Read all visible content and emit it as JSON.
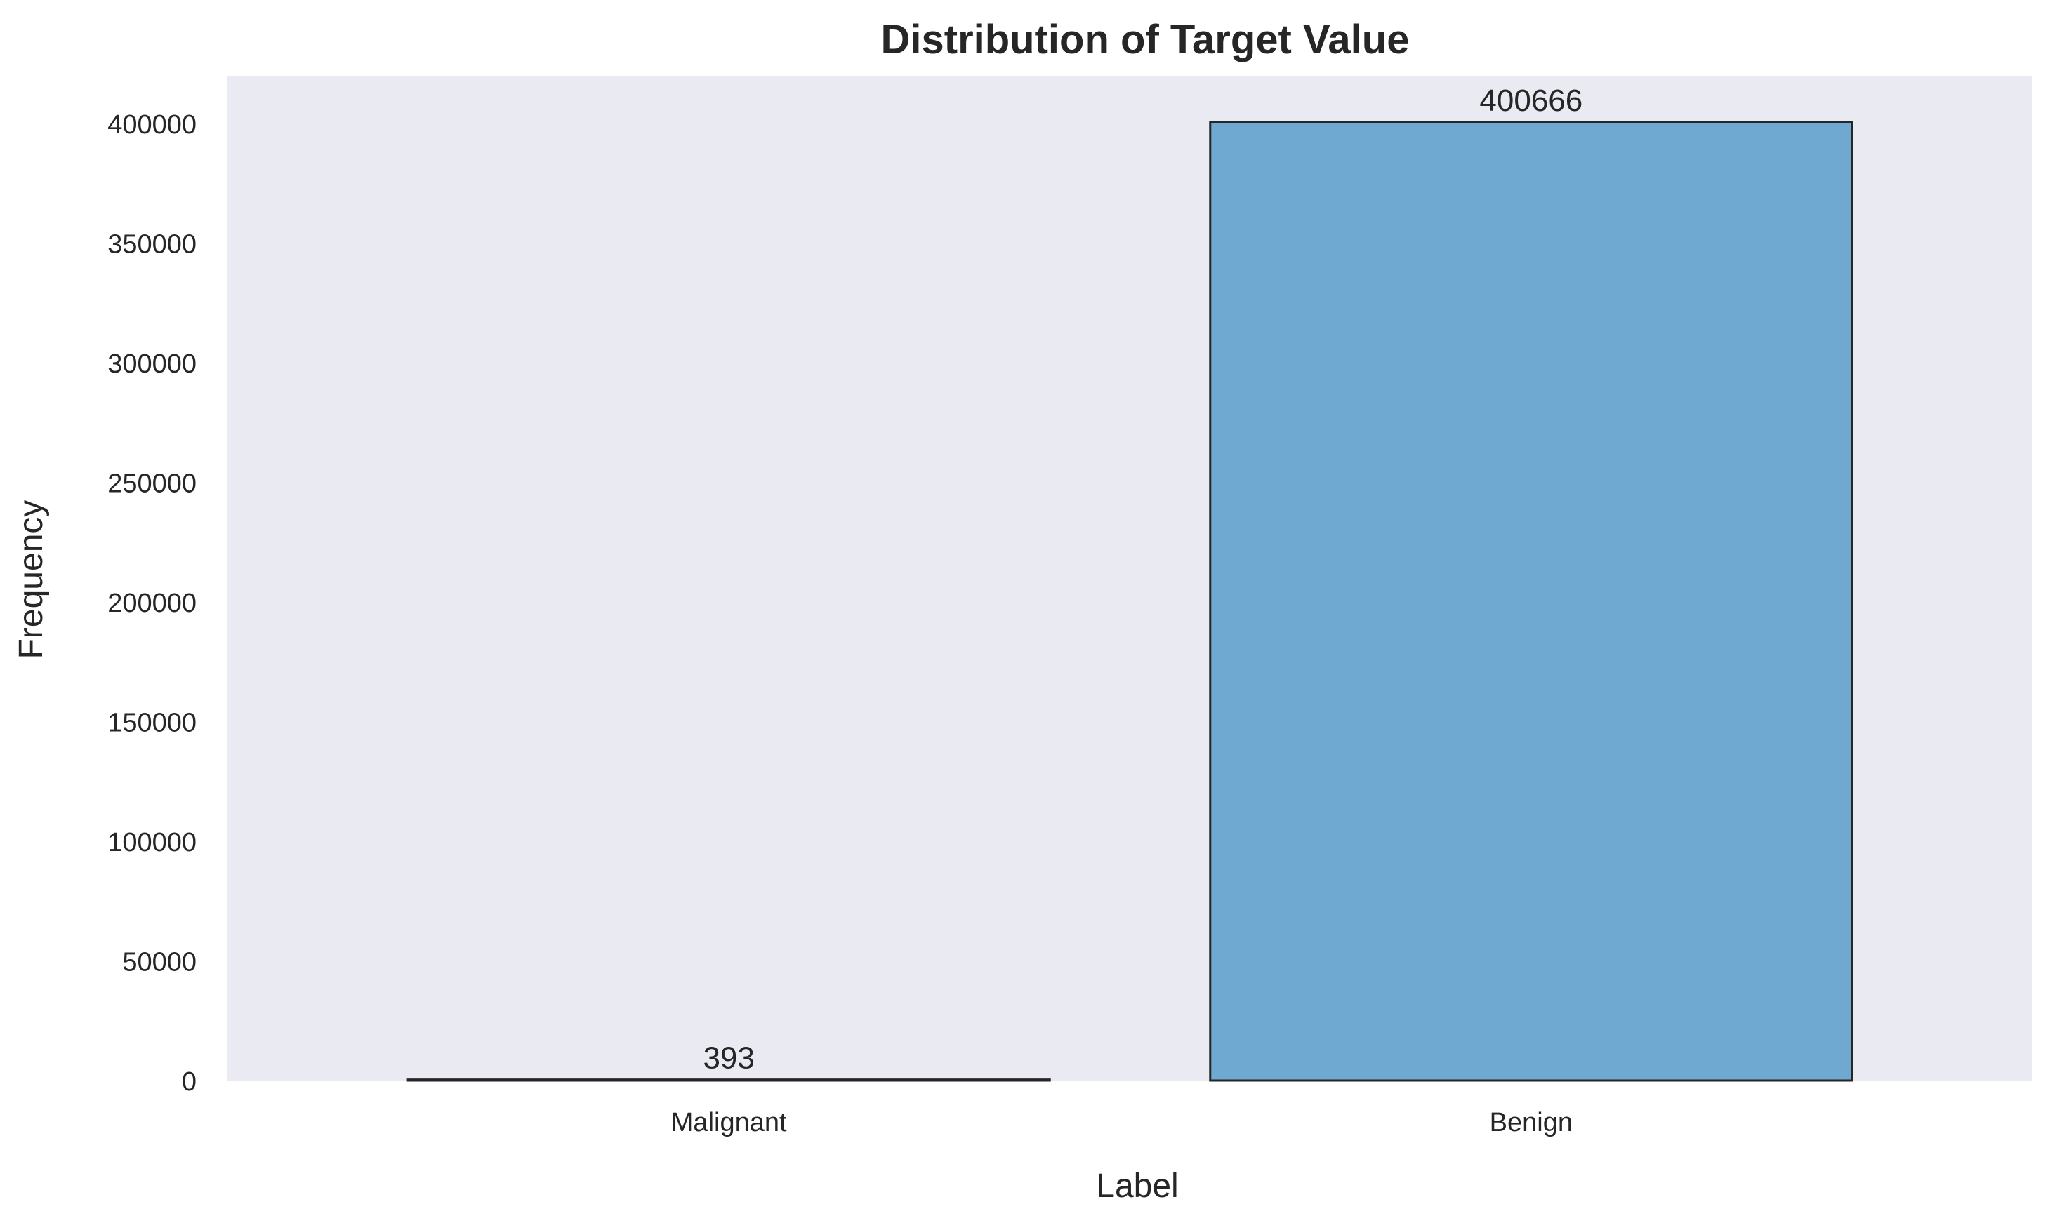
{
  "chart_data": {
    "type": "bar",
    "title": "Distribution of Target Value",
    "xlabel": "Label",
    "ylabel": "Frequency",
    "categories": [
      "Malignant",
      "Benign"
    ],
    "values": [
      393,
      400666
    ],
    "value_labels": [
      "393",
      "400666"
    ],
    "ylim": [
      0,
      420000
    ],
    "yticks": [
      0,
      50000,
      100000,
      150000,
      200000,
      250000,
      300000,
      350000,
      400000
    ],
    "ytick_labels": [
      "0",
      "50000",
      "100000",
      "150000",
      "200000",
      "250000",
      "300000",
      "350000",
      "400000"
    ],
    "grid": false,
    "legend": "none",
    "colors": {
      "plot_background": "#eaeaf2",
      "bar_fill": "#6fa8d1",
      "bar_edge": "#262626",
      "text": "#262626"
    }
  }
}
